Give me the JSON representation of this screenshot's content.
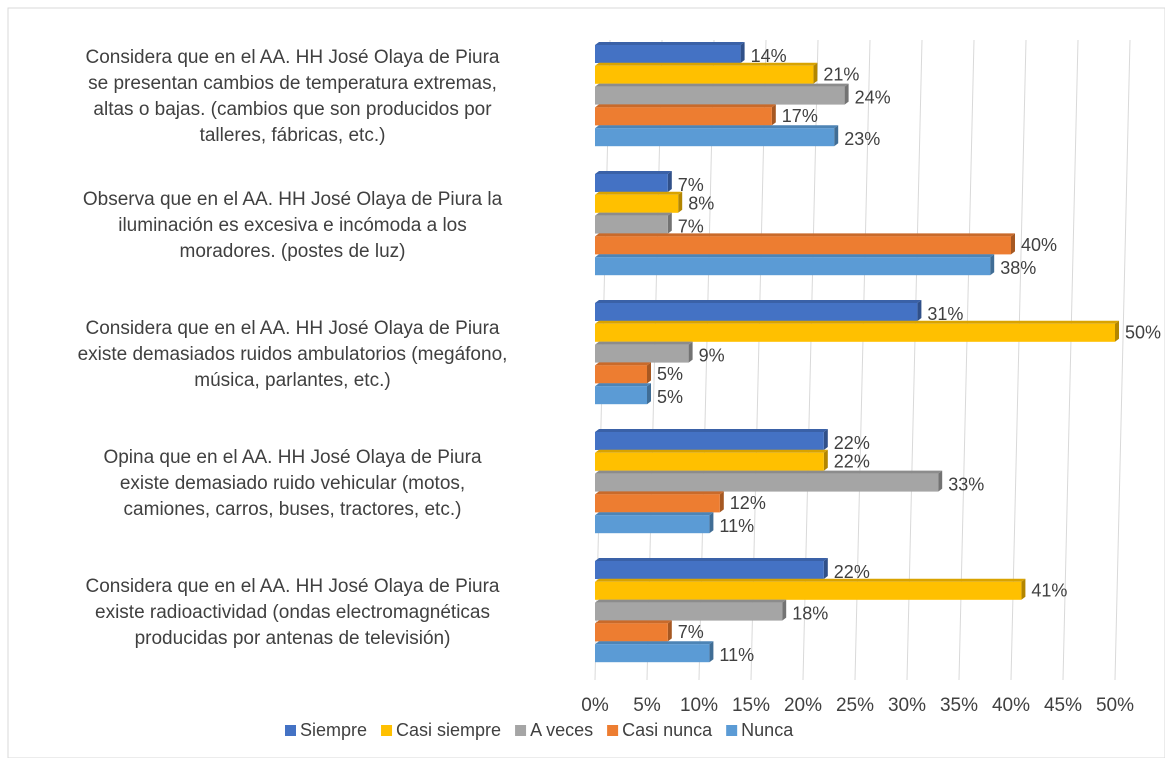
{
  "chart_data": {
    "type": "bar",
    "orientation": "horizontal",
    "categories": [
      "Considera que en el AA. HH José Olaya de Piura\nse presentan cambios de temperatura extremas,\naltas o bajas. (cambios que son producidos por\ntalleres, fábricas, etc.)",
      "Observa que en el AA. HH José Olaya de Piura la\niluminación es excesiva e incómoda a los\nmoradores. (postes de luz)",
      "Considera que en el AA. HH José Olaya de Piura\nexiste demasiados ruidos ambulatorios (megáfono,\nmúsica, parlantes, etc.)",
      "Opina que en el AA. HH José Olaya de Piura\nexiste demasiado ruido vehicular (motos,\ncamiones, carros, buses, tractores, etc.)",
      "Considera que en el AA. HH José Olaya de Piura\nexiste radioactividad (ondas electromagnéticas\nproducidas por antenas de televisión)"
    ],
    "series": [
      {
        "name": "Siempre",
        "color": "#4472c4",
        "values": [
          14,
          7,
          31,
          22,
          22
        ],
        "value_labels": [
          "14%",
          "7%",
          "31%",
          "22%",
          "22%"
        ]
      },
      {
        "name": "Casi siempre",
        "color": "#ffc000",
        "values": [
          21,
          8,
          50,
          22,
          41
        ],
        "value_labels": [
          "21%",
          "8%",
          "50%",
          "22%",
          "41%"
        ]
      },
      {
        "name": "A veces",
        "color": "#a5a5a5",
        "values": [
          24,
          7,
          9,
          33,
          18
        ],
        "value_labels": [
          "24%",
          "7%",
          "9%",
          "33%",
          "18%"
        ]
      },
      {
        "name": "Casi nunca",
        "color": "#ed7d31",
        "values": [
          17,
          40,
          5,
          12,
          7
        ],
        "value_labels": [
          "17%",
          "40%",
          "5%",
          "12%",
          "7%"
        ]
      },
      {
        "name": "Nunca",
        "color": "#5b9bd5",
        "values": [
          23,
          38,
          5,
          11,
          11
        ],
        "value_labels": [
          "23%",
          "38%",
          "5%",
          "11%",
          "11%"
        ]
      }
    ],
    "xlim": [
      0,
      50
    ],
    "xticks": [
      {
        "value": 0,
        "label": "0%"
      },
      {
        "value": 5,
        "label": "5%"
      },
      {
        "value": 10,
        "label": "10%"
      },
      {
        "value": 15,
        "label": "15%"
      },
      {
        "value": 20,
        "label": "20%"
      },
      {
        "value": 25,
        "label": "25%"
      },
      {
        "value": 30,
        "label": "30%"
      },
      {
        "value": 35,
        "label": "35%"
      },
      {
        "value": 40,
        "label": "40%"
      },
      {
        "value": 45,
        "label": "45%"
      },
      {
        "value": 50,
        "label": "50%"
      }
    ],
    "grid": true,
    "legend": "bottom"
  }
}
